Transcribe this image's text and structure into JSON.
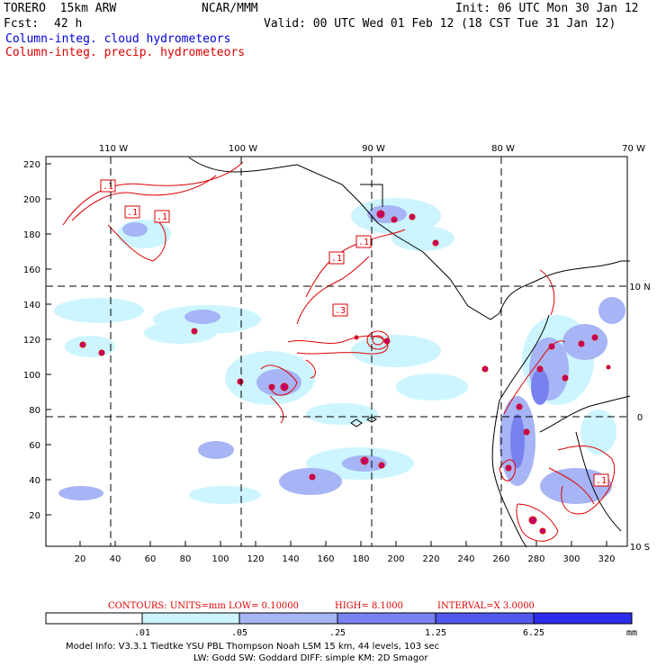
{
  "header": {
    "model": "TORERO  15km ARW",
    "org": "NCAR/MMM",
    "init": "Init: 06 UTC Mon 30 Jan 12",
    "fcst_label": "Fcst:",
    "fcst_value": "42 h",
    "valid": "Valid: 00 UTC Wed 01 Feb 12 (18 CST Tue 31 Jan 12)",
    "field1": "Column-integ. cloud hydrometeors",
    "field2": "Column-integ. precip. hydrometeors"
  },
  "colors": {
    "cloud": "#0000dd",
    "precip": "#dd0000"
  },
  "map": {
    "top_lon_labels": [
      "110 W",
      "100 W",
      "90 W",
      "80 W",
      "70 W"
    ],
    "right_lat_labels": [
      "10 N",
      "0",
      "10 S"
    ],
    "y_ticks": [
      "220",
      "200",
      "180",
      "160",
      "140",
      "120",
      "100",
      "80",
      "60",
      "40",
      "20"
    ],
    "x_ticks": [
      "20",
      "40",
      "60",
      "80",
      "100",
      "120",
      "140",
      "160",
      "180",
      "200",
      "220",
      "240",
      "260",
      "280",
      "300",
      "320"
    ],
    "contour_labels": [
      ".1",
      ".1",
      ".1",
      ".1",
      ".1",
      ".3",
      ".1"
    ]
  },
  "contours_line": {
    "prefix": "CONTOURS:  UNITS=mm  LOW= 0.10000",
    "high": "HIGH=  8.1000",
    "interval": "INTERVAL=X  3.0000"
  },
  "colorbar": {
    "labels": [
      ".01",
      ".05",
      ".25",
      "1.25",
      "6.25"
    ],
    "unit": "mm",
    "fills": [
      "#ffffff",
      "#ccf5ff",
      "#a7b4f5",
      "#7882ee",
      "#5058ee",
      "#2d2df0"
    ]
  },
  "footer": {
    "line1": "Model Info: V3.3.1    Tiedtke YSU PBL   Thompson     Noah LSM  15 km,    44 levels,   103 sec",
    "line2": "LW: Godd SW: Goddard DIFF: simple KM: 2D Smagor"
  }
}
